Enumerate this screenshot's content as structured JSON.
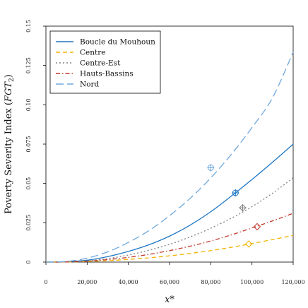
{
  "chart_data": {
    "type": "line",
    "xlabel": "x*",
    "ylabel": "Poverty Severity Index (FGT2)",
    "xlim": [
      0,
      120000
    ],
    "ylim": [
      0,
      0.15
    ],
    "x_ticks": [
      0,
      20000,
      40000,
      60000,
      80000,
      100000,
      120000
    ],
    "x_tick_labels": [
      "0",
      "20,000",
      "40,000",
      "60,000",
      "80,000",
      "100,000",
      "120,000"
    ],
    "y_ticks": [
      0,
      0.025,
      0.05,
      0.075,
      0.1,
      0.125,
      0.15
    ],
    "y_tick_labels": [
      "0",
      "0.025",
      "0.05",
      "0.075",
      "0.10",
      "0.125",
      "0.15"
    ],
    "grid": false,
    "legend_position": "top-left",
    "series": [
      {
        "name": "Boucle du Mouhoun",
        "color": "#1f77c4",
        "dash": "solid",
        "points": [
          [
            0,
            0
          ],
          [
            10000,
            0.0002
          ],
          [
            20000,
            0.0012
          ],
          [
            30000,
            0.0035
          ],
          [
            40000,
            0.0068
          ],
          [
            50000,
            0.011
          ],
          [
            60000,
            0.0165
          ],
          [
            70000,
            0.0235
          ],
          [
            80000,
            0.032
          ],
          [
            90000,
            0.042
          ],
          [
            100000,
            0.0525
          ],
          [
            110000,
            0.0635
          ],
          [
            120000,
            0.075
          ]
        ],
        "marker": {
          "x": 92000,
          "y": 0.044,
          "shape": "circle-plus"
        }
      },
      {
        "name": "Centre",
        "color": "#f0b400",
        "dash": "dashed",
        "points": [
          [
            0,
            0
          ],
          [
            10000,
            0.0001
          ],
          [
            20000,
            0.0004
          ],
          [
            30000,
            0.0009
          ],
          [
            40000,
            0.0017
          ],
          [
            50000,
            0.0027
          ],
          [
            60000,
            0.004
          ],
          [
            70000,
            0.0055
          ],
          [
            80000,
            0.0073
          ],
          [
            90000,
            0.0094
          ],
          [
            100000,
            0.0118
          ],
          [
            110000,
            0.0143
          ],
          [
            120000,
            0.017
          ]
        ],
        "marker": {
          "x": 98500,
          "y": 0.0115,
          "shape": "diamond"
        }
      },
      {
        "name": "Centre-Est",
        "color": "#808080",
        "dash": "dotted",
        "points": [
          [
            0,
            0
          ],
          [
            10000,
            0.0001
          ],
          [
            20000,
            0.0008
          ],
          [
            30000,
            0.0022
          ],
          [
            40000,
            0.0045
          ],
          [
            50000,
            0.0075
          ],
          [
            60000,
            0.0113
          ],
          [
            70000,
            0.016
          ],
          [
            80000,
            0.0215
          ],
          [
            90000,
            0.0279
          ],
          [
            100000,
            0.0352
          ],
          [
            110000,
            0.0438
          ],
          [
            120000,
            0.0535
          ]
        ],
        "marker": {
          "x": 95500,
          "y": 0.0345,
          "shape": "diamond-plus"
        }
      },
      {
        "name": "Hauts-Bassins",
        "color": "#c0392b",
        "dash": "dashdot",
        "points": [
          [
            0,
            0
          ],
          [
            10000,
            0.0001
          ],
          [
            20000,
            0.0006
          ],
          [
            30000,
            0.0016
          ],
          [
            40000,
            0.003
          ],
          [
            50000,
            0.0049
          ],
          [
            60000,
            0.0073
          ],
          [
            70000,
            0.0101
          ],
          [
            80000,
            0.0134
          ],
          [
            90000,
            0.0173
          ],
          [
            100000,
            0.0217
          ],
          [
            110000,
            0.0262
          ],
          [
            120000,
            0.031
          ]
        ],
        "marker": {
          "x": 102500,
          "y": 0.0225,
          "shape": "diamond"
        }
      },
      {
        "name": "Nord",
        "color": "#6fa8dc",
        "dash": "longdash",
        "points": [
          [
            0,
            0
          ],
          [
            10000,
            0.0004
          ],
          [
            20000,
            0.0025
          ],
          [
            30000,
            0.0065
          ],
          [
            40000,
            0.0125
          ],
          [
            50000,
            0.02
          ],
          [
            60000,
            0.0295
          ],
          [
            70000,
            0.0405
          ],
          [
            80000,
            0.0535
          ],
          [
            90000,
            0.0685
          ],
          [
            100000,
            0.0855
          ],
          [
            110000,
            0.1045
          ],
          [
            120000,
            0.1335
          ]
        ],
        "marker": {
          "x": 80000,
          "y": 0.06,
          "shape": "circle-plus"
        }
      }
    ]
  }
}
